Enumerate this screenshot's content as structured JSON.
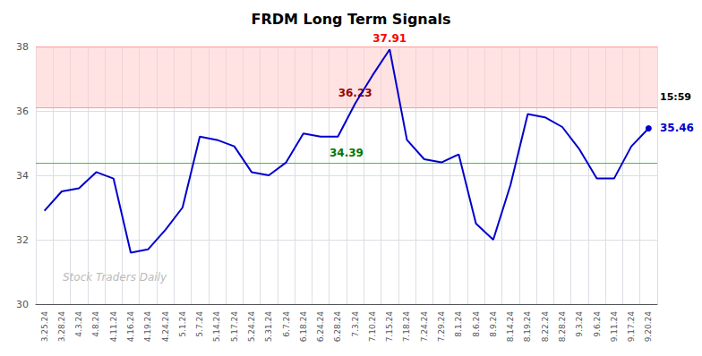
{
  "chart_data": {
    "type": "line",
    "title": "FRDM Long Term Signals",
    "categories": [
      "3.25.24",
      "3.28.24",
      "4.3.24",
      "4.8.24",
      "4.11.24",
      "4.16.24",
      "4.19.24",
      "4.24.24",
      "5.1.24",
      "5.7.24",
      "5.14.24",
      "5.17.24",
      "5.24.24",
      "5.31.24",
      "6.7.24",
      "6.18.24",
      "6.24.24",
      "6.28.24",
      "7.3.24",
      "7.10.24",
      "7.15.24",
      "7.18.24",
      "7.24.24",
      "7.29.24",
      "8.1.24",
      "8.6.24",
      "8.9.24",
      "8.14.24",
      "8.19.24",
      "8.22.24",
      "8.28.24",
      "9.3.24",
      "9.6.24",
      "9.11.24",
      "9.17.24",
      "9.20.24"
    ],
    "values": [
      32.9,
      33.5,
      33.6,
      34.1,
      33.9,
      31.6,
      31.7,
      32.3,
      33.0,
      35.2,
      35.1,
      34.9,
      34.1,
      34.0,
      34.4,
      35.3,
      35.2,
      35.2,
      36.23,
      37.1,
      37.91,
      35.1,
      34.5,
      34.4,
      34.65,
      32.5,
      32.0,
      33.7,
      35.9,
      35.8,
      35.5,
      34.8,
      33.9,
      33.9,
      34.9,
      35.46
    ],
    "color": "#0000cc",
    "ylim": [
      30,
      38
    ],
    "yticks": [
      30,
      32,
      34,
      36,
      38
    ],
    "grid": true,
    "band": {
      "from": 36.1,
      "to": 38.0,
      "color": "#ffcccc"
    },
    "reference_lines": [
      {
        "value": 38.0,
        "color": "#ff9999"
      },
      {
        "value": 36.1,
        "color": "#ff9999"
      },
      {
        "value": 34.39,
        "color": "#33cc33",
        "label": "34.39",
        "label_color": "#007700"
      }
    ],
    "annotations": [
      {
        "text": "37.91",
        "x": "7.15.24",
        "y": 37.91,
        "color": "red"
      },
      {
        "text": "36.23",
        "x": "7.3.24",
        "y": 36.23,
        "color": "#990000"
      }
    ],
    "end_labels": [
      {
        "text": "15:59",
        "y": 36.1
      },
      {
        "text": "35.46",
        "y": 35.46,
        "color": "#0000cc"
      }
    ],
    "watermark": "Stock Traders Daily"
  }
}
